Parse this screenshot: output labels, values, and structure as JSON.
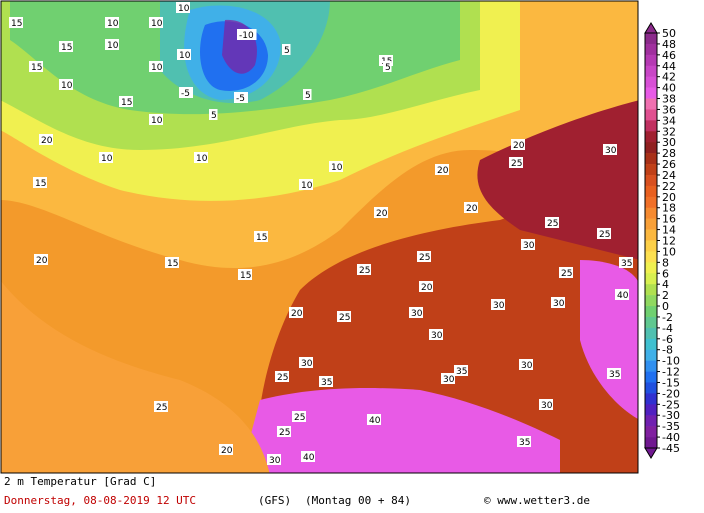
{
  "map": {
    "labels": [
      "15",
      "10",
      "10",
      "15",
      "10",
      "10",
      "-10",
      "5",
      "10",
      "15",
      "10",
      "10",
      "15",
      "10",
      "15",
      "5",
      "-5",
      "-5",
      "5",
      "5",
      "10",
      "15",
      "20",
      "10",
      "10",
      "10",
      "15",
      "20",
      "20",
      "20",
      "25",
      "30",
      "20",
      "15",
      "20",
      "15",
      "15",
      "25",
      "25",
      "30",
      "20",
      "25",
      "30",
      "25",
      "25",
      "30",
      "30",
      "35",
      "30",
      "35",
      "40",
      "30",
      "25",
      "35",
      "30",
      "40",
      "35",
      "25",
      "20",
      "25",
      "35",
      "40",
      "30",
      "25",
      "30",
      "30",
      "20",
      "25"
    ],
    "colorbar": {
      "labels": [
        "50",
        "48",
        "46",
        "44",
        "42",
        "40",
        "38",
        "36",
        "34",
        "32",
        "30",
        "28",
        "26",
        "24",
        "22",
        "20",
        "18",
        "16",
        "14",
        "12",
        "10",
        "8",
        "6",
        "4",
        "2",
        "0",
        "-2",
        "-4",
        "-6",
        "-8",
        "-10",
        "-12",
        "-15",
        "-20",
        "-25",
        "-30",
        "-35",
        "-40",
        "-45"
      ],
      "colors": [
        "#8b2a8b",
        "#a0309e",
        "#b53ab3",
        "#c846c6",
        "#d850d6",
        "#e85ae6",
        "#f070b0",
        "#e05090",
        "#c03060",
        "#a02030",
        "#902020",
        "#a83018",
        "#c04018",
        "#d85020",
        "#e86020",
        "#f07028",
        "#f58a30",
        "#f8a038",
        "#fbb840",
        "#fdd048",
        "#fde050",
        "#f0f050",
        "#d8f050",
        "#b0e050",
        "#90d860",
        "#70d070",
        "#60c890",
        "#50c0b0",
        "#40c0d0",
        "#40b0e8",
        "#3090f0",
        "#2070f0",
        "#2050e0",
        "#3030d0",
        "#5020c0",
        "#7020b0",
        "#8020a0",
        "#701890"
      ]
    }
  },
  "footer": {
    "title": "2 m Temperatur [Grad C]",
    "date": "Donnerstag, 08-08-2019  12 UTC",
    "model": "(GFS)",
    "run": "(Montag 00 + 84)",
    "credit": "© www.wetter3.de"
  }
}
